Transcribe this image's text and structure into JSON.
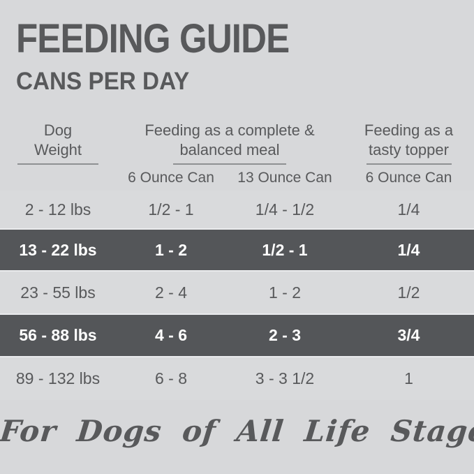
{
  "header": {
    "title": "FEEDING GUIDE",
    "subtitle": "CANS PER DAY"
  },
  "table": {
    "group_headers": [
      {
        "line1": "Dog",
        "line2": "Weight"
      },
      {
        "line1": "Feeding as a complete &",
        "line2": "balanced meal"
      },
      {
        "line1": "Feeding as a",
        "line2": "tasty topper"
      }
    ],
    "can_headers": [
      "6 Ounce Can",
      "13 Ounce Can",
      "6 Ounce Can"
    ],
    "rows": [
      {
        "weight": "2 - 12 lbs",
        "values": [
          "1/2 - 1",
          "1/4 - 1/2",
          "1/4"
        ],
        "highlighted": false
      },
      {
        "weight": "13 - 22 lbs",
        "values": [
          "1 - 2",
          "1/2 - 1",
          "1/4"
        ],
        "highlighted": true
      },
      {
        "weight": "23 - 55 lbs",
        "values": [
          "2 - 4",
          "1 - 2",
          "1/2"
        ],
        "highlighted": false
      },
      {
        "weight": "56 - 88 lbs",
        "values": [
          "4 - 6",
          "2 - 3",
          "3/4"
        ],
        "highlighted": true
      },
      {
        "weight": "89 - 132 lbs",
        "values": [
          "6 - 8",
          "3 - 3 1/2",
          "1"
        ],
        "highlighted": false
      }
    ]
  },
  "footer": {
    "tagline": "For Dogs of All Life Stages"
  },
  "colors": {
    "background": "#d7d8da",
    "text_dark": "#58595b",
    "highlight_band": "#545659",
    "highlight_text": "#ffffff",
    "underline": "#8e9093"
  },
  "chart_data": {
    "type": "table",
    "title": "FEEDING GUIDE",
    "subtitle": "CANS PER DAY",
    "column_groups": [
      "Dog Weight",
      "Feeding as a complete & balanced meal",
      "Feeding as a tasty topper"
    ],
    "columns": [
      "Dog Weight",
      "Complete meal - 6 Ounce Can",
      "Complete meal - 13 Ounce Can",
      "Tasty topper - 6 Ounce Can"
    ],
    "rows": [
      [
        "2 - 12 lbs",
        "1/2 - 1",
        "1/4 - 1/2",
        "1/4"
      ],
      [
        "13 - 22 lbs",
        "1 - 2",
        "1/2 - 1",
        "1/4"
      ],
      [
        "23 - 55 lbs",
        "2 - 4",
        "1 - 2",
        "1/2"
      ],
      [
        "56 - 88 lbs",
        "4 - 6",
        "2 - 3",
        "3/4"
      ],
      [
        "89 - 132 lbs",
        "6 - 8",
        "3 - 3 1/2",
        "1"
      ]
    ],
    "highlighted_rows": [
      "13 - 22 lbs",
      "56 - 88 lbs"
    ],
    "annotation": "For Dogs of All Life Stages"
  }
}
